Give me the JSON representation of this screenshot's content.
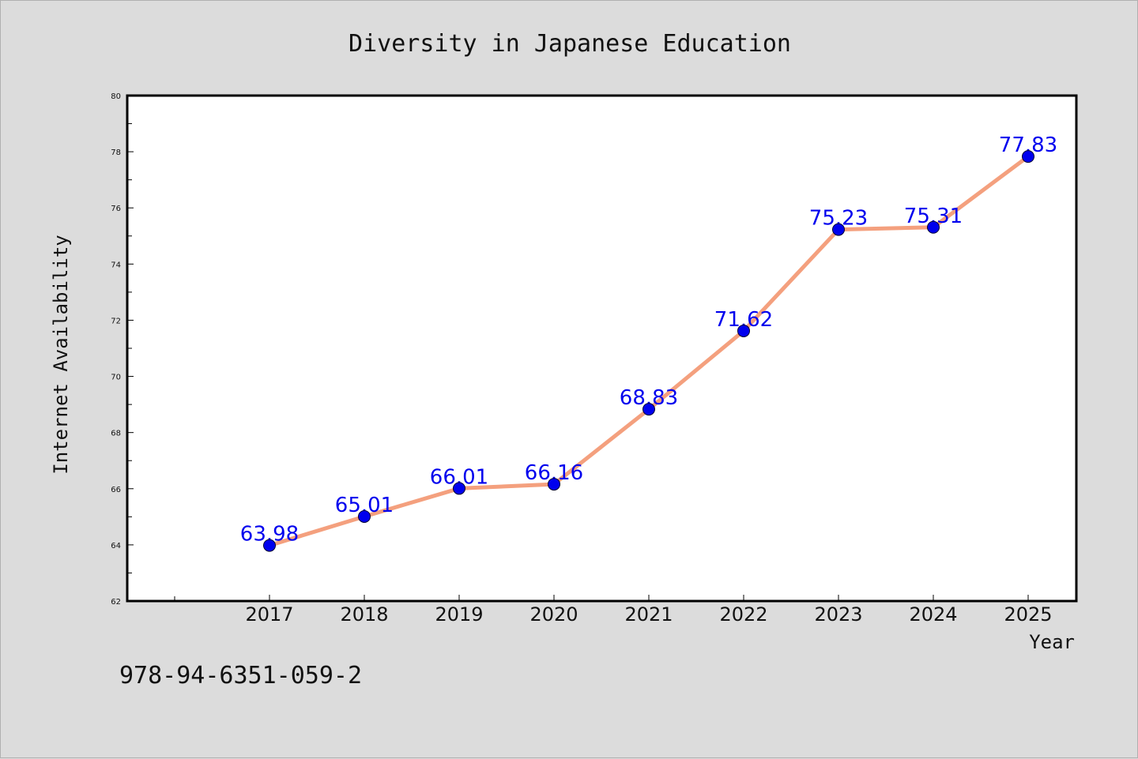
{
  "chart_data": {
    "type": "line",
    "title": "Diversity in Japanese Education",
    "xlabel": "Year",
    "ylabel": "Internet Availability",
    "categories": [
      "2017",
      "2018",
      "2019",
      "2020",
      "2021",
      "2022",
      "2023",
      "2024",
      "2025"
    ],
    "series": [
      {
        "values": [
          63.98,
          65.01,
          66.01,
          66.16,
          68.83,
          71.62,
          75.23,
          75.31,
          77.83
        ]
      }
    ],
    "data_labels": [
      "63.98",
      "65.01",
      "66.01",
      "66.16",
      "68.83",
      "71.62",
      "75.23",
      "75.31",
      "77.83"
    ],
    "ylim": [
      62,
      80
    ],
    "y_ticks": [
      "62",
      "64",
      "66",
      "68",
      "70",
      "72",
      "74",
      "76",
      "78",
      "80"
    ],
    "grid": false,
    "line_color": "#f4a07e",
    "marker_color": "#0000ee",
    "label_color": "#0000ee"
  },
  "footer": {
    "isbn": "978-94-6351-059-2"
  }
}
